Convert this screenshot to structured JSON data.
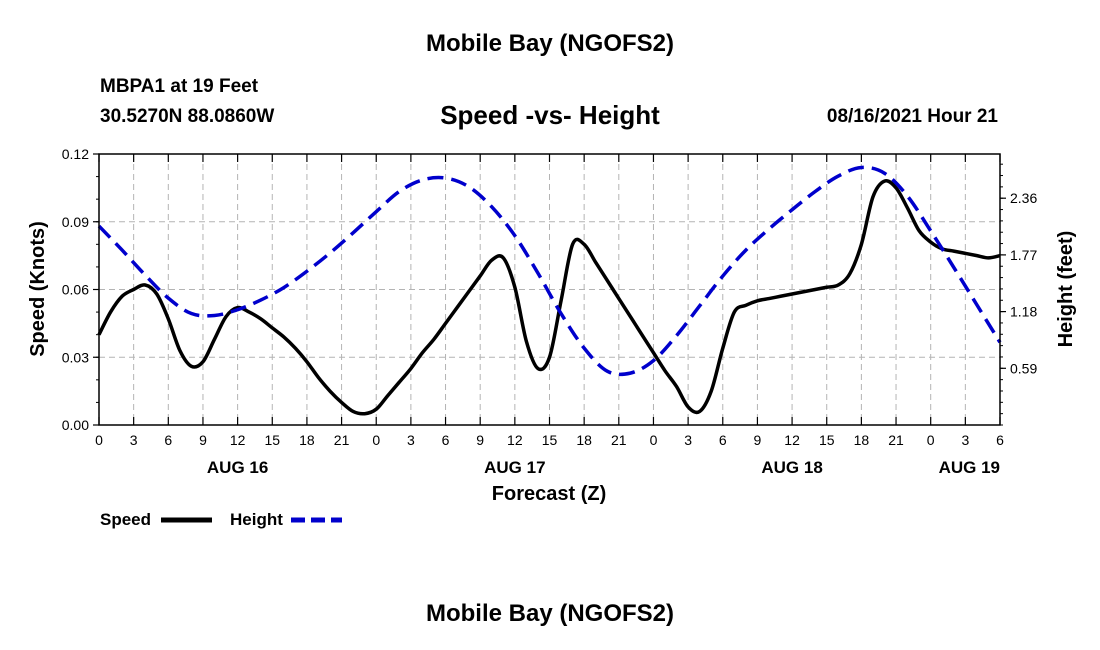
{
  "header": {
    "title": "Mobile Bay (NGOFS2)",
    "station": "MBPA1 at 19 Feet",
    "coordinates": "30.5270N  88.0860W",
    "subtitle": "Speed -vs- Height",
    "date": "08/16/2021 Hour 21"
  },
  "footer": {
    "title": "Mobile Bay (NGOFS2)"
  },
  "chart_data": {
    "type": "line",
    "title": "Speed -vs- Height",
    "xlabel": "Forecast (Z)",
    "ylabel_left": "Speed (Knots)",
    "ylabel_right": "Height (feet)",
    "x_range": [
      0,
      78
    ],
    "x_unit": "hours from 08/16/2021 00Z",
    "x_tick_labels": [
      "0",
      "3",
      "6",
      "9",
      "12",
      "15",
      "18",
      "21",
      "0",
      "3",
      "6",
      "9",
      "12",
      "15",
      "18",
      "21",
      "0",
      "3",
      "6",
      "9",
      "12",
      "15",
      "18",
      "21",
      "0",
      "3",
      "6"
    ],
    "day_labels": [
      {
        "label": "AUG 16",
        "hour": 12
      },
      {
        "label": "AUG 17",
        "hour": 36
      },
      {
        "label": "AUG 18",
        "hour": 60
      },
      {
        "label": "AUG 19",
        "hour": 78
      }
    ],
    "y_left": {
      "range": [
        0,
        0.12
      ],
      "ticks": [
        "0.00",
        "0.03",
        "0.06",
        "0.09",
        "0.12"
      ],
      "tick_values": [
        0,
        0.03,
        0.06,
        0.09,
        0.12
      ]
    },
    "y_right": {
      "range": [
        0.0,
        2.82
      ],
      "ticks": [
        "0.59",
        "1.18",
        "1.77",
        "2.36"
      ],
      "tick_values": [
        0.59,
        1.18,
        1.77,
        2.36
      ]
    },
    "grid": true,
    "legend_position": "bottom-left",
    "series": [
      {
        "name": "Speed",
        "axis": "left",
        "color": "#000000",
        "style": "solid",
        "x": [
          0,
          1,
          2,
          3,
          4,
          5,
          6,
          7,
          8,
          9,
          10,
          11,
          12,
          13,
          14,
          15,
          16,
          17,
          18,
          19,
          20,
          21,
          22,
          23,
          24,
          25,
          26,
          27,
          28,
          29,
          30,
          31,
          32,
          33,
          34,
          35,
          36,
          37,
          38,
          39,
          40,
          41,
          42,
          43,
          44,
          45,
          46,
          47,
          48,
          49,
          50,
          51,
          52,
          53,
          54,
          55,
          56,
          57,
          58,
          59,
          60,
          61,
          62,
          63,
          64,
          65,
          66,
          67,
          68,
          69,
          70,
          71,
          72,
          73,
          74,
          75,
          76,
          77,
          78
        ],
        "values": [
          0.04,
          0.05,
          0.057,
          0.06,
          0.062,
          0.058,
          0.047,
          0.033,
          0.026,
          0.028,
          0.038,
          0.048,
          0.052,
          0.05,
          0.047,
          0.043,
          0.039,
          0.034,
          0.028,
          0.021,
          0.015,
          0.01,
          0.006,
          0.005,
          0.007,
          0.013,
          0.019,
          0.025,
          0.032,
          0.038,
          0.045,
          0.052,
          0.059,
          0.066,
          0.073,
          0.074,
          0.061,
          0.037,
          0.025,
          0.03,
          0.055,
          0.08,
          0.08,
          0.072,
          0.064,
          0.056,
          0.048,
          0.04,
          0.032,
          0.024,
          0.017,
          0.008,
          0.006,
          0.015,
          0.034,
          0.05,
          0.053,
          0.055,
          0.056,
          0.057,
          0.058,
          0.059,
          0.06,
          0.061,
          0.062,
          0.067,
          0.08,
          0.101,
          0.108,
          0.105,
          0.096,
          0.086,
          0.081,
          0.078,
          0.077,
          0.076,
          0.075,
          0.074,
          0.075
        ]
      },
      {
        "name": "Height",
        "axis": "right",
        "color": "#0000cc",
        "style": "dashed",
        "x": [
          0,
          2,
          4,
          6,
          8,
          10,
          12,
          14,
          16,
          18,
          20,
          22,
          24,
          26,
          28,
          30,
          32,
          34,
          36,
          38,
          40,
          42,
          44,
          46,
          48,
          50,
          52,
          54,
          56,
          58,
          60,
          62,
          64,
          66,
          68,
          70,
          72,
          74,
          76,
          78
        ],
        "values": [
          2.07,
          1.82,
          1.56,
          1.32,
          1.16,
          1.14,
          1.2,
          1.3,
          1.43,
          1.6,
          1.79,
          2.0,
          2.22,
          2.43,
          2.55,
          2.57,
          2.48,
          2.27,
          1.97,
          1.58,
          1.16,
          0.8,
          0.56,
          0.54,
          0.67,
          0.93,
          1.24,
          1.55,
          1.82,
          2.04,
          2.24,
          2.43,
          2.59,
          2.68,
          2.62,
          2.38,
          2.02,
          1.64,
          1.25,
          0.86
        ]
      }
    ]
  }
}
